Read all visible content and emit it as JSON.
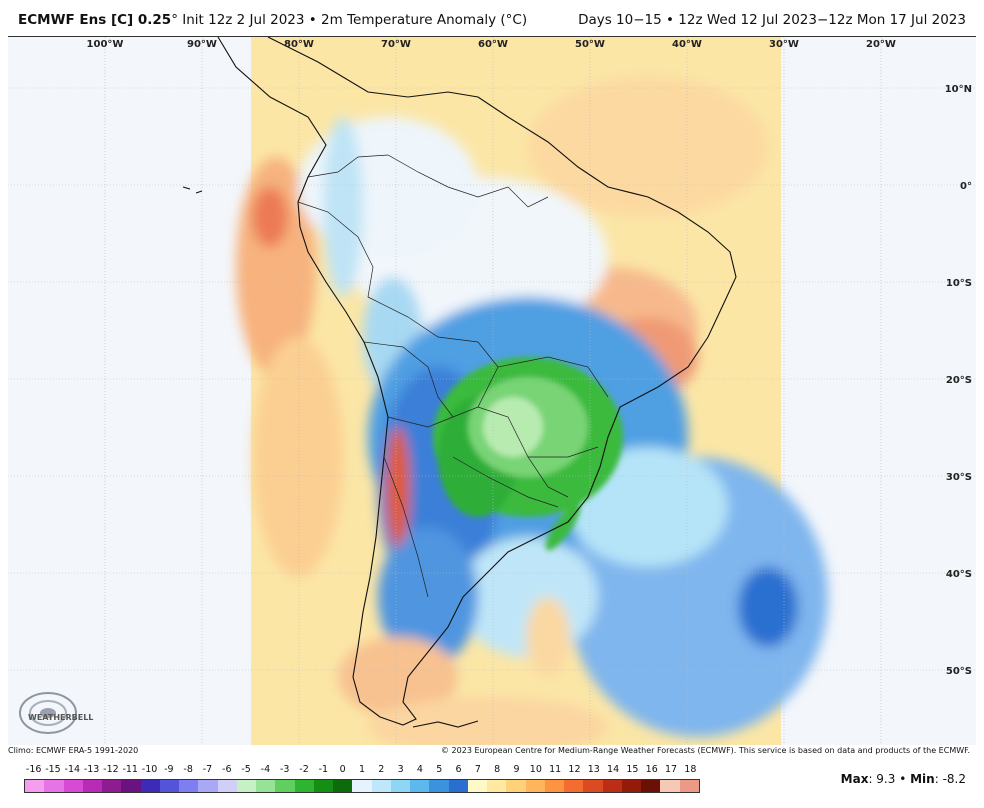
{
  "header": {
    "title_bold": "ECMWF Ens [C] 0.25",
    "title_rest": "° Init 12z 2 Jul 2023 • 2m Temperature Anomaly (°C)",
    "right": "Days 10−15 • 12z Wed 12 Jul 2023−12z Mon 17 Jul 2023"
  },
  "map": {
    "lon_labels": [
      "100°W",
      "90°W",
      "80°W",
      "70°W",
      "60°W",
      "50°W",
      "40°W",
      "30°W",
      "20°W"
    ],
    "lat_labels": [
      "10°N",
      "0°",
      "10°S",
      "20°S",
      "30°S",
      "40°S",
      "50°S"
    ],
    "logo": "WEATHERBELL"
  },
  "footer": {
    "climo": "Climo: ECMWF ERA-5 1991-2020",
    "copyright": "© 2023 European Centre for Medium-Range Weather Forecasts (ECMWF). This service is based on data and products of the ECMWF."
  },
  "colorbar": {
    "labels": [
      "-16",
      "-15",
      "-14",
      "-13",
      "-12",
      "-11",
      "-10",
      "-9",
      "-8",
      "-7",
      "-6",
      "-5",
      "-4",
      "-3",
      "-2",
      "-1",
      "0",
      "1",
      "2",
      "3",
      "4",
      "5",
      "6",
      "7",
      "8",
      "9",
      "10",
      "11",
      "12",
      "13",
      "14",
      "15",
      "16",
      "17",
      "18"
    ],
    "colors": [
      "#f59ef0",
      "#e774e4",
      "#d94ad4",
      "#b92ab6",
      "#8e1c8f",
      "#6a1380",
      "#3d2ab8",
      "#5454d8",
      "#7e7ef0",
      "#a8a8f4",
      "#cfcff8",
      "#c6f0c6",
      "#96e296",
      "#60cf60",
      "#2fb42f",
      "#148f14",
      "#0c6c0c",
      "#e6f3ff",
      "#bfe7fb",
      "#8fd6f6",
      "#5cb9ee",
      "#3c93dd",
      "#2a6fcf",
      "#fff9c8",
      "#ffe9a0",
      "#ffd27a",
      "#ffb65a",
      "#ff9440",
      "#f46d30",
      "#dc4a22",
      "#bb2d14",
      "#941a0a",
      "#6a1005",
      "#f6c8b6",
      "#ec9a86"
    ]
  },
  "stats": {
    "max_label": "Max",
    "max_value": ": 9.3",
    "sep": " • ",
    "min_label": "Min",
    "min_value": ": -8.2"
  }
}
